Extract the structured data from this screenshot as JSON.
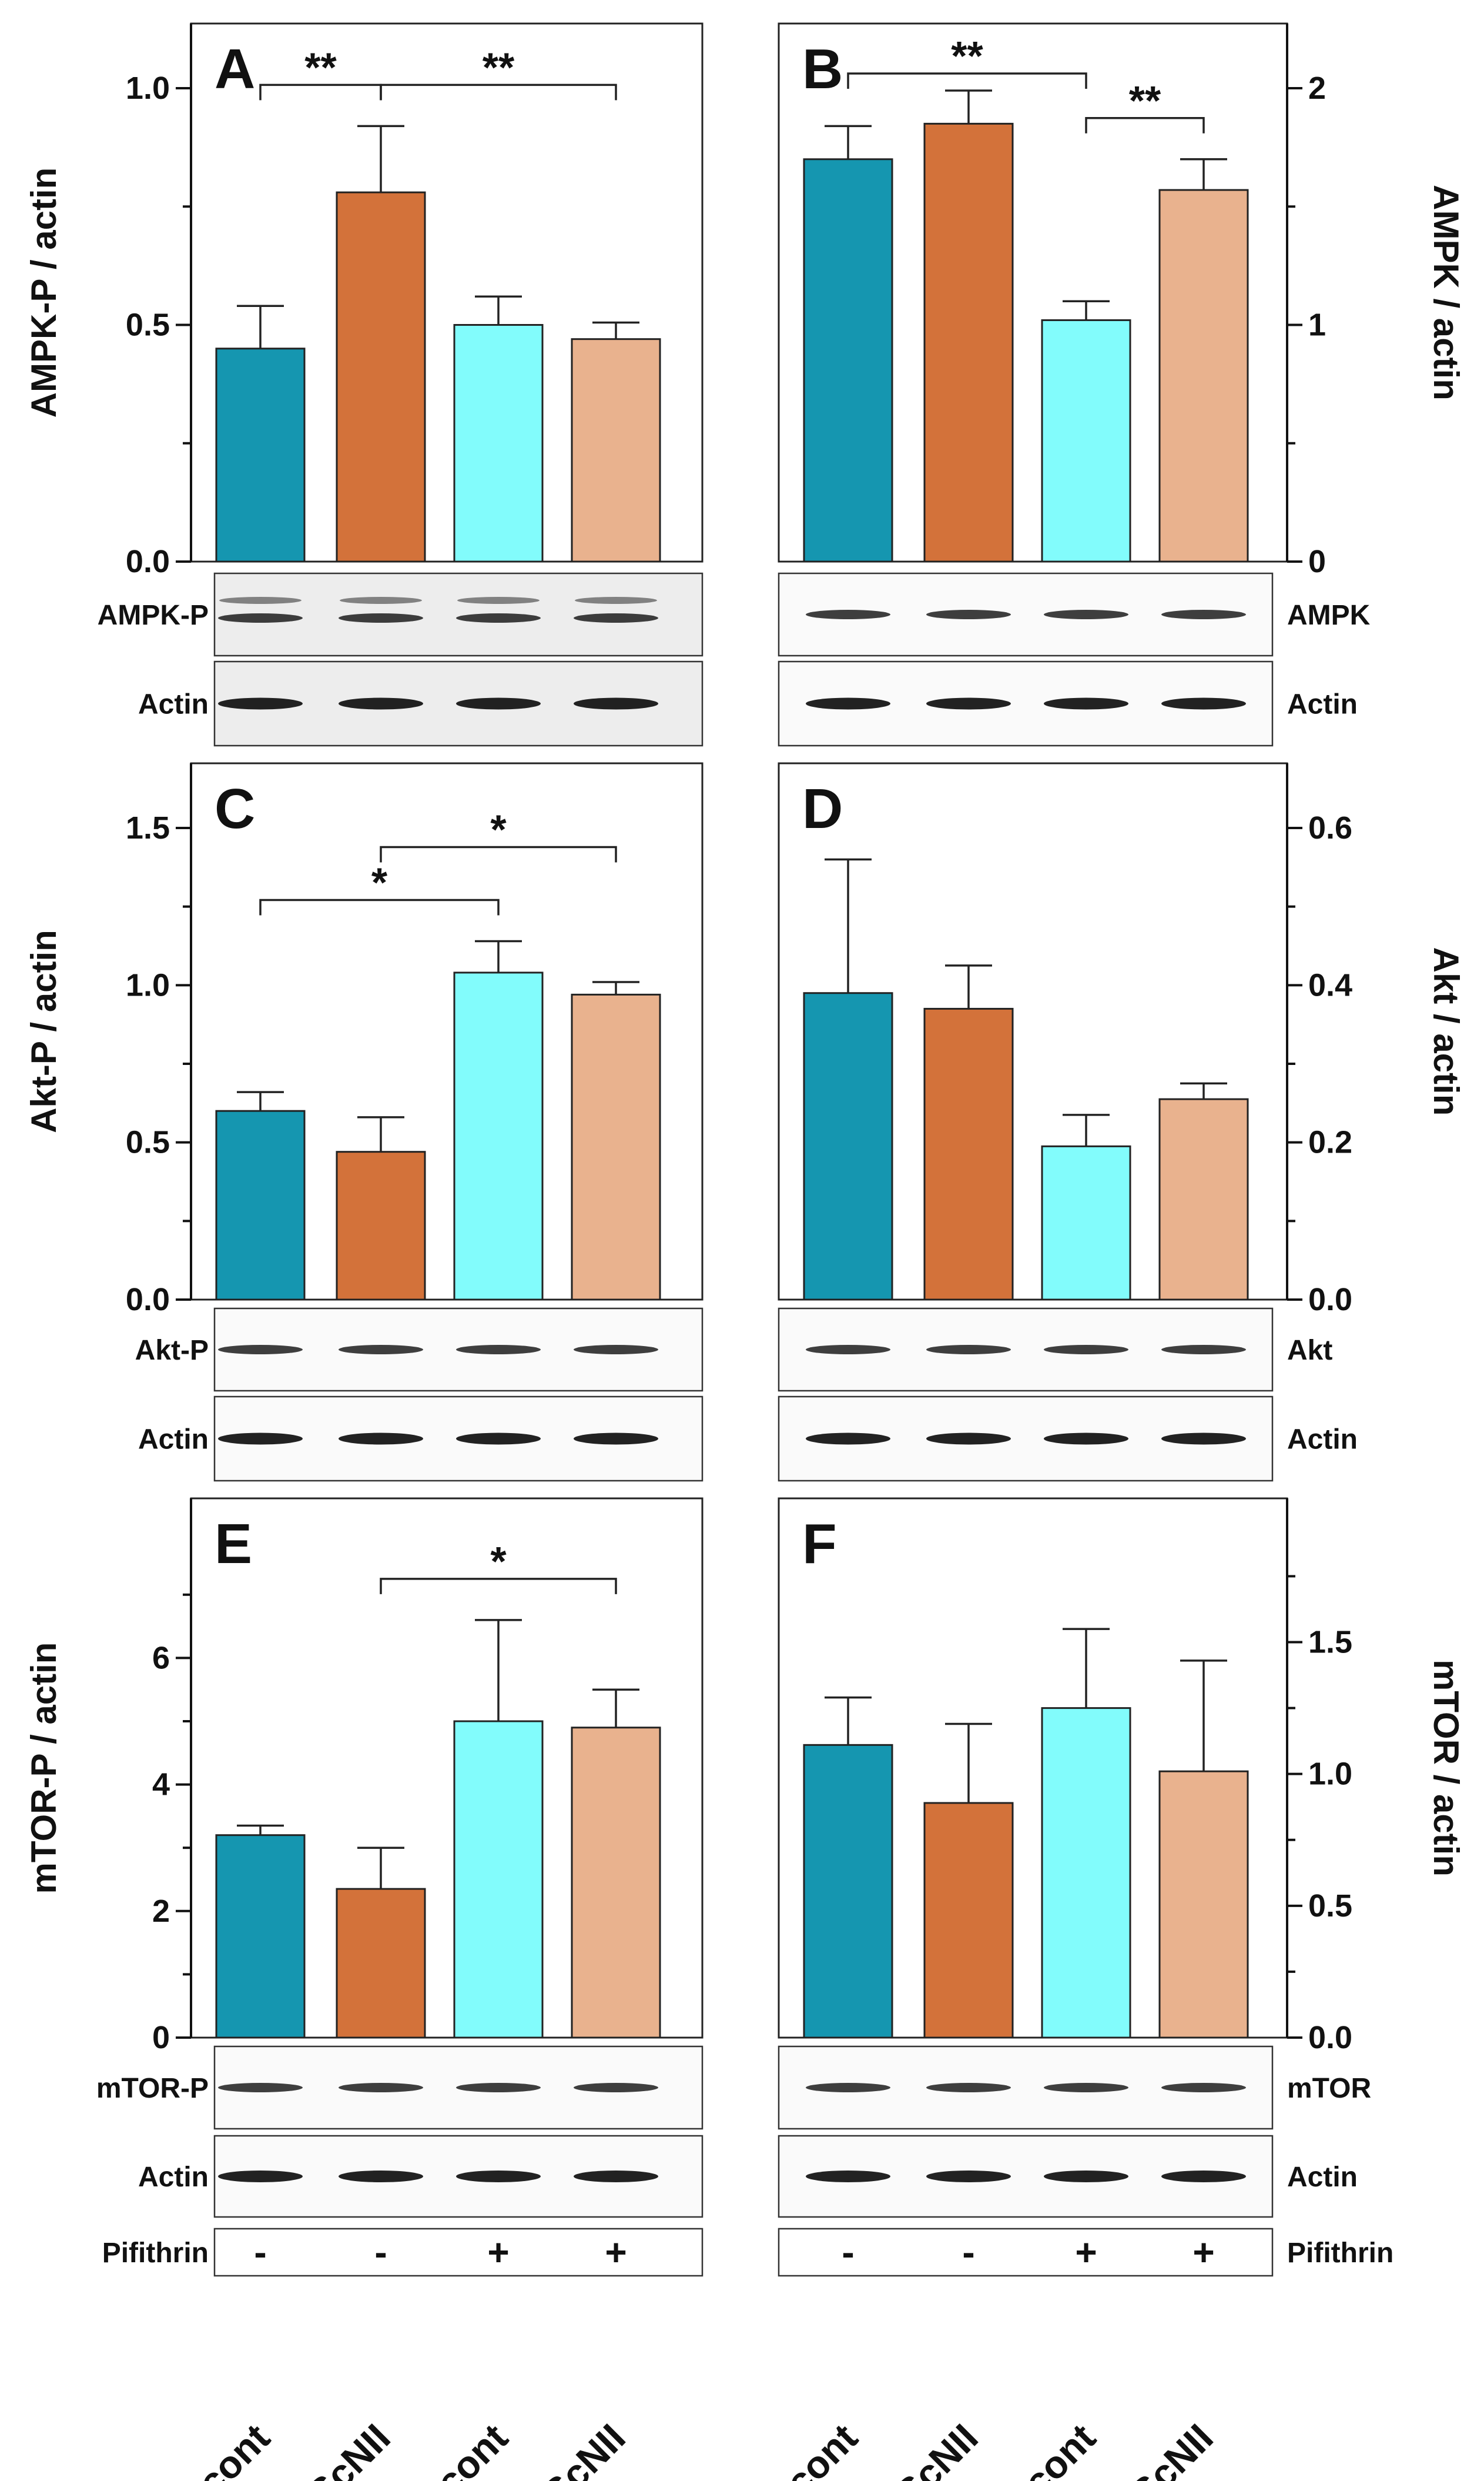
{
  "colors": {
    "pScont_minus": "#1596b0",
    "pScNII_minus": "#d3723a",
    "pScont_plus": "#82fcfc",
    "pScNII_plus": "#e9b28e"
  },
  "categories": [
    "pScont",
    "pScNII",
    "pScont",
    "pScNII"
  ],
  "treatment": {
    "label": "Pifithrin",
    "signs": [
      "-",
      "-",
      "+",
      "+"
    ]
  },
  "chart_data": [
    {
      "type": "bar",
      "panel": "A",
      "ylabel": "AMPK-P / actin",
      "ylim": [
        0,
        1.0
      ],
      "yticks": [
        0.0,
        0.5,
        1.0
      ],
      "tick_labels": [
        "0.0",
        "0.5",
        "1.0"
      ],
      "values": [
        0.45,
        0.78,
        0.5,
        0.47
      ],
      "errors": [
        0.09,
        0.14,
        0.06,
        0.035
      ],
      "significance": [
        {
          "from": 0,
          "to": 1,
          "label": "**"
        },
        {
          "from": 1,
          "to": 3,
          "label": "**"
        }
      ],
      "blots": [
        "AMPK-P",
        "Actin"
      ]
    },
    {
      "type": "bar",
      "panel": "B",
      "ylabel": "AMPK / actin",
      "ylim": [
        0,
        2
      ],
      "yticks": [
        0,
        1,
        2
      ],
      "tick_labels": [
        "0",
        "1",
        "2"
      ],
      "values": [
        1.7,
        1.85,
        1.02,
        1.57
      ],
      "errors": [
        0.14,
        0.14,
        0.08,
        0.13
      ],
      "significance": [
        {
          "from": 0,
          "to": 2,
          "label": "**"
        },
        {
          "from": 2,
          "to": 3,
          "label": "**"
        }
      ],
      "blots": [
        "AMPK",
        "Actin"
      ]
    },
    {
      "type": "bar",
      "panel": "C",
      "ylabel": "Akt-P / actin",
      "ylim": [
        0,
        1.5
      ],
      "yticks": [
        0.0,
        0.5,
        1.0,
        1.5
      ],
      "tick_labels": [
        "0.0",
        "0.5",
        "1.0",
        "1.5"
      ],
      "values": [
        0.6,
        0.47,
        1.04,
        0.97
      ],
      "errors": [
        0.06,
        0.11,
        0.1,
        0.04
      ],
      "significance": [
        {
          "from": 0,
          "to": 2,
          "label": "*"
        },
        {
          "from": 1,
          "to": 3,
          "label": "*"
        }
      ],
      "blots": [
        "Akt-P",
        "Actin"
      ]
    },
    {
      "type": "bar",
      "panel": "D",
      "ylabel": "Akt / actin",
      "ylim": [
        0,
        0.6
      ],
      "yticks": [
        0.0,
        0.2,
        0.4,
        0.6
      ],
      "tick_labels": [
        "0.0",
        "0.2",
        "0.4",
        "0.6"
      ],
      "values": [
        0.39,
        0.37,
        0.195,
        0.255
      ],
      "errors": [
        0.17,
        0.055,
        0.04,
        0.02
      ],
      "significance": [],
      "blots": [
        "Akt",
        "Actin"
      ]
    },
    {
      "type": "bar",
      "panel": "E",
      "ylabel": "mTOR-P / actin",
      "ylim": [
        0,
        7.5
      ],
      "yticks": [
        0,
        2,
        4,
        6
      ],
      "tick_labels": [
        "0",
        "2",
        "4",
        "6"
      ],
      "values": [
        3.2,
        2.35,
        5.0,
        4.9
      ],
      "errors": [
        0.15,
        0.65,
        1.6,
        0.6
      ],
      "significance": [
        {
          "from": 1,
          "to": 3,
          "label": "*"
        }
      ],
      "blots": [
        "mTOR-P",
        "Actin"
      ]
    },
    {
      "type": "bar",
      "panel": "F",
      "ylabel": "mTOR / actin",
      "ylim": [
        0,
        1.8
      ],
      "yticks": [
        0.0,
        0.5,
        1.0,
        1.5
      ],
      "tick_labels": [
        "0.0",
        "0.5",
        "1.0",
        "1.5"
      ],
      "values": [
        1.11,
        0.89,
        1.25,
        1.01
      ],
      "errors": [
        0.18,
        0.3,
        0.3,
        0.42
      ],
      "significance": [],
      "blots": [
        "mTOR",
        "Actin"
      ]
    }
  ]
}
